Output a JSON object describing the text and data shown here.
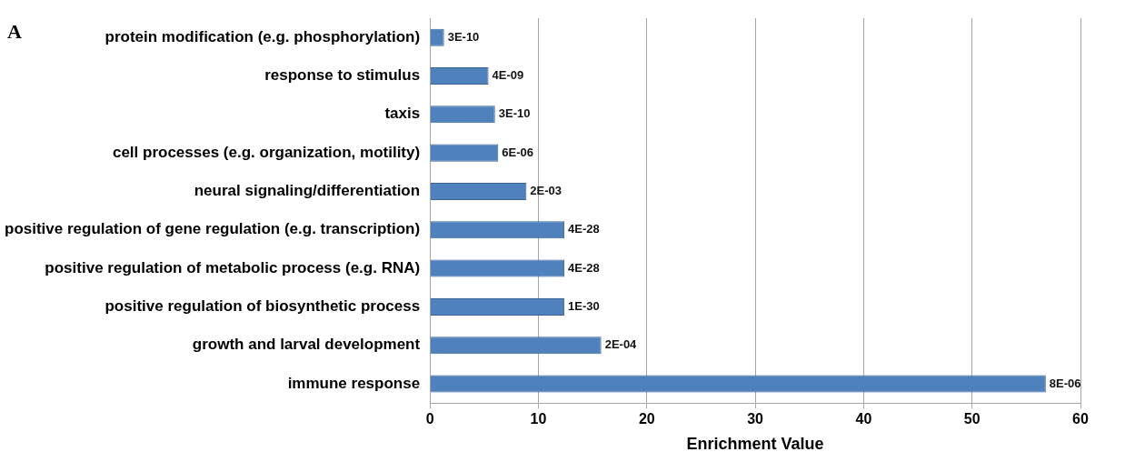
{
  "chart_data": {
    "type": "bar",
    "orientation": "horizontal",
    "categories": [
      "protein modification (e.g. phosphorylation)",
      "response to stimulus",
      "taxis",
      "cell processes (e.g. organization, motility)",
      "neural signaling/differentiation",
      "positive regulation of gene regulation (e.g. transcription)",
      "positive regulation of metabolic process (e.g. RNA)",
      "positive regulation of biosynthetic process",
      "growth and larval development",
      "immune response"
    ],
    "values": [
      1.3,
      5.4,
      6.0,
      6.3,
      8.9,
      12.4,
      12.4,
      12.4,
      15.8,
      56.8
    ],
    "color": "#4f81bd",
    "xlabel": "Enrichment Value",
    "xlim": [
      0,
      60
    ],
    "xticks": [
      0,
      10,
      20,
      30,
      40,
      50,
      60
    ],
    "grid": "x",
    "annotations": [
      "A",
      {
        "text": "3E-10",
        "x": 1.3,
        "y": "protein modification (e.g. phosphorylation)"
      },
      {
        "text": "4E-09",
        "x": 5.4,
        "y": "response to stimulus"
      },
      {
        "text": "3E-10",
        "x": 6.0,
        "y": "taxis"
      },
      {
        "text": "6E-06",
        "x": 6.3,
        "y": "cell processes (e.g. organization, motility)"
      },
      {
        "text": "2E-03",
        "x": 8.9,
        "y": "neural signaling/differentiation"
      },
      {
        "text": "4E-28",
        "x": 12.4,
        "y": "positive regulation of gene regulation (e.g. transcription)"
      },
      {
        "text": "4E-28",
        "x": 12.4,
        "y": "positive regulation of metabolic process (e.g. RNA)"
      },
      {
        "text": "1E-30",
        "x": 12.4,
        "y": "positive regulation of biosynthetic process"
      },
      {
        "text": "2E-04",
        "x": 15.8,
        "y": "growth and larval development"
      },
      {
        "text": "8E-06",
        "x": 56.8,
        "y": "immune response"
      }
    ]
  }
}
